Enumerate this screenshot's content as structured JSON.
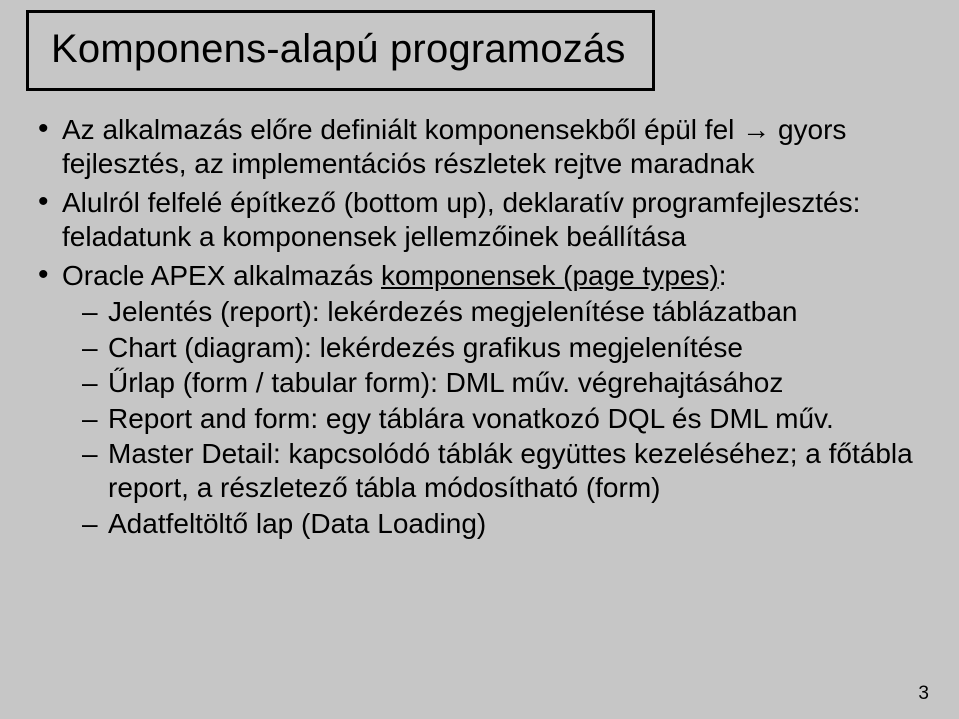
{
  "colors": {
    "background": "#c6c6c6",
    "text": "#000000",
    "border": "#000000"
  },
  "title": "Komponens-alapú programozás",
  "bullets": [
    {
      "text": "Az alkalmazás előre definiált komponensekből épül fel → gyors fejlesztés, az implementációs részletek rejtve maradnak"
    },
    {
      "text": "Alulról felfelé építkező (bottom up), deklaratív programfejlesztés: feladatunk a komponensek jellemzőinek beállítása"
    },
    {
      "prefix": "Oracle APEX alkalmazás ",
      "underlined": "komponensek (page types)",
      "suffix": ":",
      "sub": [
        "Jelentés (report): lekérdezés megjelenítése táblázatban",
        "Chart (diagram): lekérdezés grafikus megjelenítése",
        "Űrlap (form / tabular form): DML műv. végrehajtásához",
        "Report and form: egy táblára vonatkozó DQL és DML műv.",
        "Master Detail: kapcsolódó táblák együttes kezeléséhez; a főtábla report, a részletező tábla módosítható (form)",
        "Adatfeltöltő lap (Data Loading)"
      ]
    }
  ],
  "page_number": "3"
}
